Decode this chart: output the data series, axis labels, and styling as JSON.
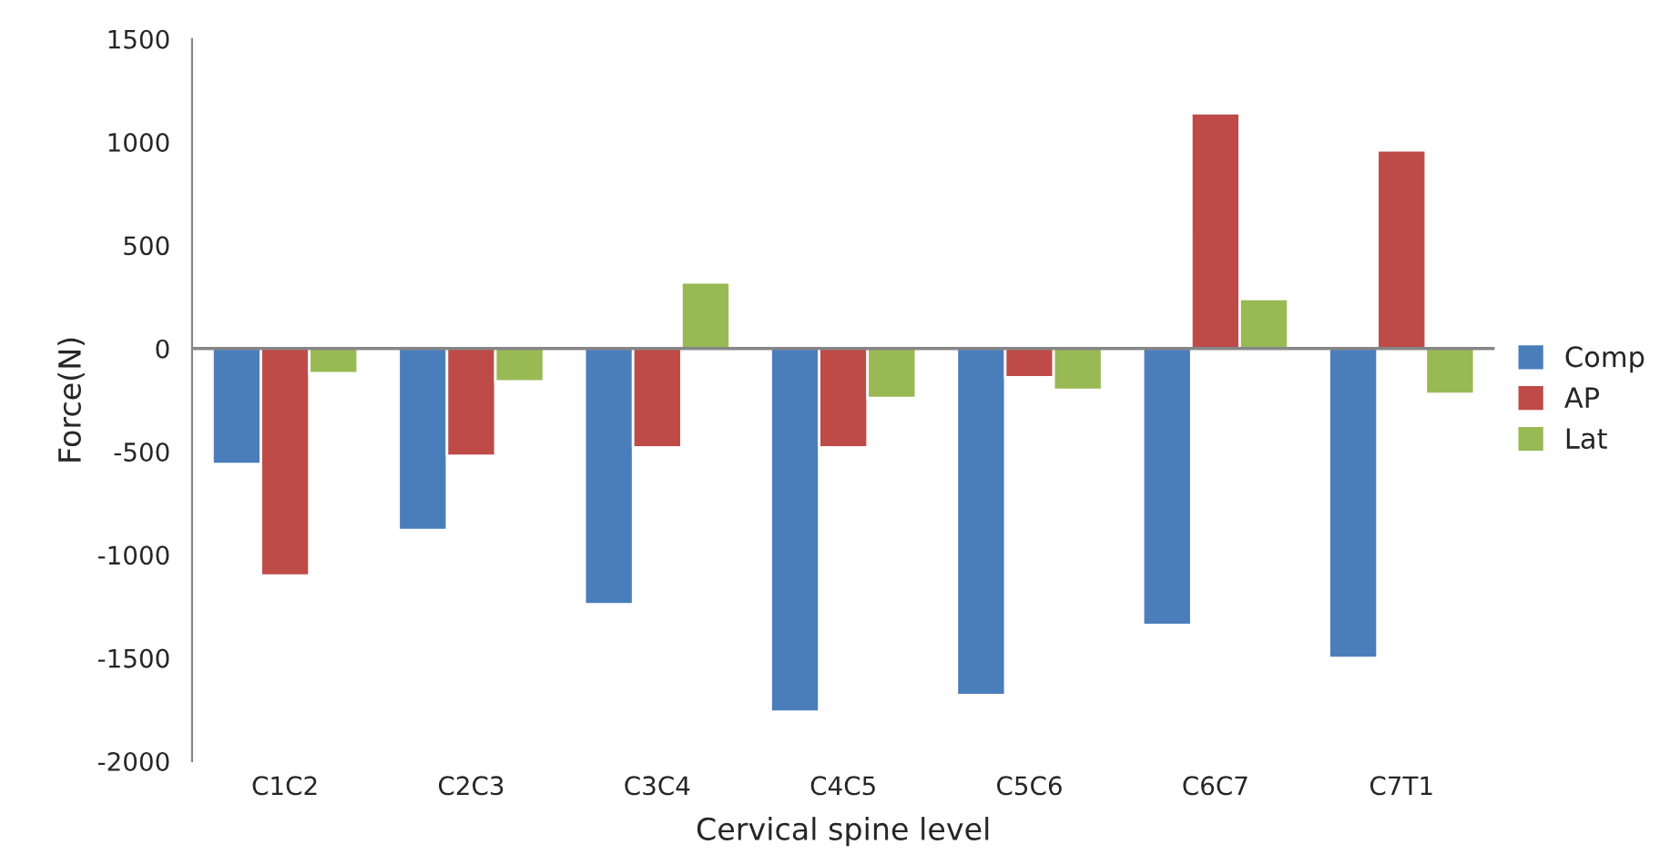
{
  "chart_data": {
    "type": "bar",
    "xlabel": "Cervical spine level",
    "ylabel": "Force(N)",
    "categories": [
      "C1C2",
      "C2C3",
      "C3C4",
      "C4C5",
      "C5C6",
      "C6C7",
      "C7T1"
    ],
    "series": [
      {
        "name": "Comp",
        "color": "#4a7ebb",
        "values": [
          -560,
          -880,
          -1240,
          -1760,
          -1680,
          -1340,
          -1500
        ]
      },
      {
        "name": "AP",
        "color": "#be4b48",
        "values": [
          -1100,
          -520,
          -480,
          -480,
          -140,
          1140,
          960
        ]
      },
      {
        "name": "Lat",
        "color": "#98b954",
        "values": [
          -120,
          -160,
          320,
          -240,
          -200,
          240,
          -220
        ]
      }
    ],
    "ylim": [
      -2000,
      1500
    ],
    "yticks": [
      -2000,
      -1500,
      -1000,
      -500,
      0,
      500,
      1000,
      1500
    ],
    "ref_lines": [
      {
        "axis": "y",
        "value": 0,
        "color": "#868686"
      }
    ],
    "grid": false,
    "legend": "right"
  }
}
